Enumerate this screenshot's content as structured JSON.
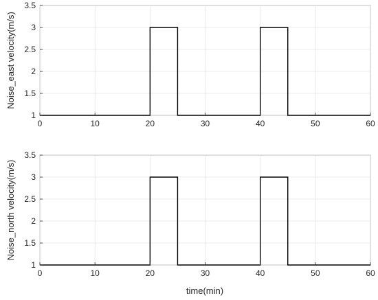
{
  "chart_data": [
    {
      "type": "line",
      "title": "",
      "xlabel": "",
      "ylabel": "Noise_east velocity(m/s)",
      "xlim": [
        0,
        60
      ],
      "ylim": [
        1,
        3.5
      ],
      "xticks": [
        "0",
        "10",
        "20",
        "30",
        "40",
        "50",
        "60"
      ],
      "yticks": [
        "1",
        "1.5",
        "2",
        "2.5",
        "3",
        "3.5"
      ],
      "grid": true,
      "line_color": "#000000",
      "series": [
        {
          "x": [
            0,
            20,
            20,
            25,
            25,
            40,
            40,
            45,
            45,
            60
          ],
          "values": [
            1,
            1,
            3,
            3,
            1,
            1,
            3,
            3,
            1,
            1
          ]
        }
      ]
    },
    {
      "type": "line",
      "title": "",
      "xlabel": "time(min)",
      "ylabel": "Noise_north velocity(m/s)",
      "xlim": [
        0,
        60
      ],
      "ylim": [
        1,
        3.5
      ],
      "xticks": [
        "0",
        "10",
        "20",
        "30",
        "40",
        "50",
        "60"
      ],
      "yticks": [
        "1",
        "1.5",
        "2",
        "2.5",
        "3",
        "3.5"
      ],
      "grid": true,
      "line_color": "#000000",
      "series": [
        {
          "x": [
            0,
            20,
            20,
            25,
            25,
            40,
            40,
            45,
            45,
            60
          ],
          "values": [
            1,
            1,
            3,
            3,
            1,
            1,
            3,
            3,
            1,
            1
          ]
        }
      ]
    }
  ]
}
